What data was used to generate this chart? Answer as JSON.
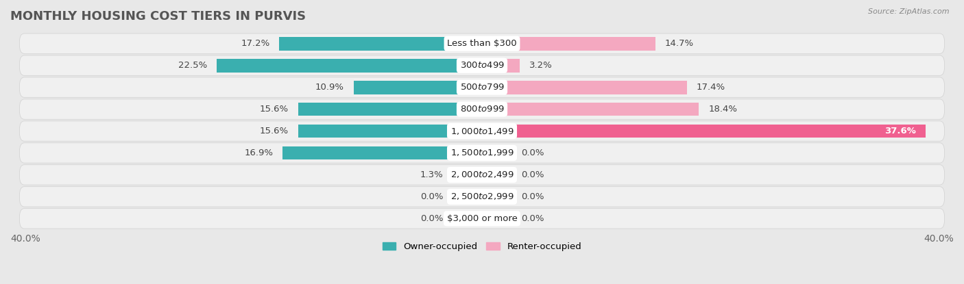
{
  "title": "MONTHLY HOUSING COST TIERS IN PURVIS",
  "source_text": "Source: ZipAtlas.com",
  "categories": [
    "Less than $300",
    "$300 to $499",
    "$500 to $799",
    "$800 to $999",
    "$1,000 to $1,499",
    "$1,500 to $1,999",
    "$2,000 to $2,499",
    "$2,500 to $2,999",
    "$3,000 or more"
  ],
  "owner_values": [
    17.2,
    22.5,
    10.9,
    15.6,
    15.6,
    16.9,
    1.3,
    0.0,
    0.0
  ],
  "renter_values": [
    14.7,
    3.2,
    17.4,
    18.4,
    37.6,
    0.0,
    0.0,
    0.0,
    0.0
  ],
  "renter_stub": 2.5,
  "owner_color_strong": "#3AAFAF",
  "owner_color_weak": "#7FCDCD",
  "renter_color_strong": "#F06090",
  "renter_color_light": "#F4A8C0",
  "renter_color_stub": "#F4B8CC",
  "owner_label": "Owner-occupied",
  "renter_label": "Renter-occupied",
  "xlim": 40.0,
  "background_color": "#e8e8e8",
  "row_bg_color": "#f0f0f0",
  "title_fontsize": 13,
  "axis_fontsize": 10,
  "label_fontsize": 9.5,
  "cat_fontsize": 9.5
}
